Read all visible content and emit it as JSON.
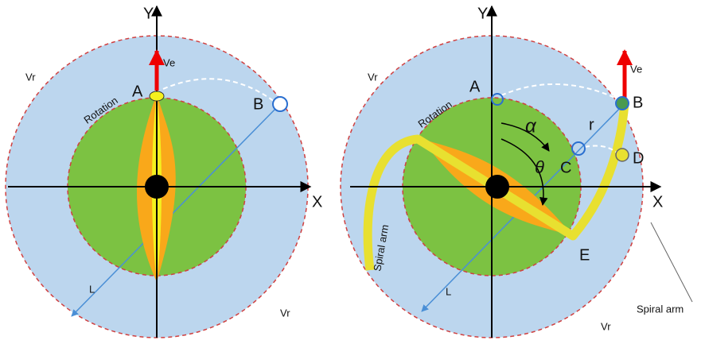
{
  "left": {
    "y_axis": "Y",
    "x_axis": "X",
    "ve": "Ve",
    "vr_top": "Vr",
    "vr_bottom": "Vr",
    "rotation": "Rotation",
    "point_a": "A",
    "point_b": "B",
    "length": "L"
  },
  "right": {
    "y_axis": "Y",
    "x_axis": "X",
    "ve": "Ve",
    "vr_top": "Vr",
    "vr_bottom": "Vr",
    "rotation": "Rotation",
    "point_a": "A",
    "point_b": "B",
    "radius": "r",
    "alpha": "α",
    "theta": "θ",
    "point_c": "C",
    "point_d": "D",
    "point_e": "E",
    "length": "L",
    "arm_left": "Spiral arm",
    "arm_right": "Spiral arm"
  }
}
